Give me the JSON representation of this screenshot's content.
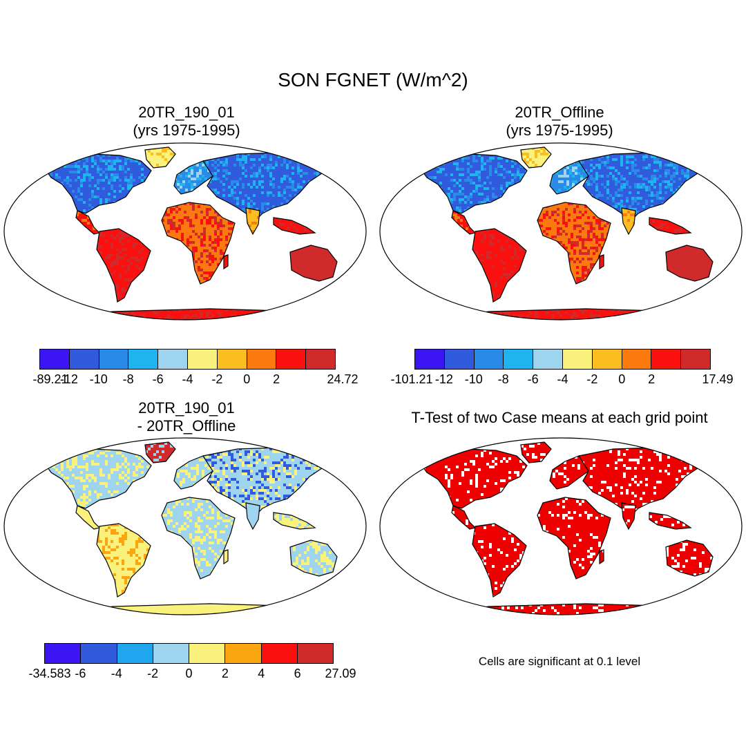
{
  "title": "SON FGNET (W/m^2)",
  "panels": [
    {
      "id": "p1",
      "title_line1": "20TR_190_01",
      "title_line2": "(yrs 1975-1995)",
      "kind": "field"
    },
    {
      "id": "p2",
      "title_line1": "20TR_Offline",
      "title_line2": "(yrs 1975-1995)",
      "kind": "field"
    },
    {
      "id": "p3",
      "title_line1": "20TR_190_01",
      "title_line2": "- 20TR_Offline",
      "kind": "difference"
    },
    {
      "id": "p4",
      "title_line1": "T-Test of two Case means at each grid point",
      "title_line2": "",
      "kind": "significance"
    }
  ],
  "colorbars": [
    {
      "id": "cb1",
      "colors": [
        "#3b16f2",
        "#2f5bdc",
        "#2a8ae8",
        "#1fb4ef",
        "#9fd4ef",
        "#fbf27e",
        "#fbbd20",
        "#fb7a10",
        "#fb1010",
        "#d12a2a"
      ],
      "labels": [
        "-89.21",
        "-12",
        "-10",
        "-8",
        "-6",
        "-4",
        "-2",
        "0",
        "2",
        "24.72"
      ]
    },
    {
      "id": "cb2",
      "colors": [
        "#3b16f2",
        "#2f5bdc",
        "#2a8ae8",
        "#1fb4ef",
        "#9fd4ef",
        "#fbf27e",
        "#fbbd20",
        "#fb7a10",
        "#fb1010",
        "#d12a2a"
      ],
      "labels": [
        "-101.21",
        "-12",
        "-10",
        "-8",
        "-6",
        "-4",
        "-2",
        "0",
        "2",
        "17.49"
      ]
    },
    {
      "id": "cb3",
      "colors": [
        "#3b16f2",
        "#2f5bdc",
        "#1fa6ef",
        "#9fd4ef",
        "#fbf27e",
        "#fba510",
        "#fb1010",
        "#d12a2a"
      ],
      "labels": [
        "-34.583",
        "-6",
        "-4",
        "-2",
        "0",
        "2",
        "4",
        "6",
        "27.09"
      ]
    }
  ],
  "note": "Cells are significant at 0.1 level",
  "colors": {
    "ocean": "#ffffff",
    "land_outline": "#000000",
    "significant": "#ee0000"
  }
}
